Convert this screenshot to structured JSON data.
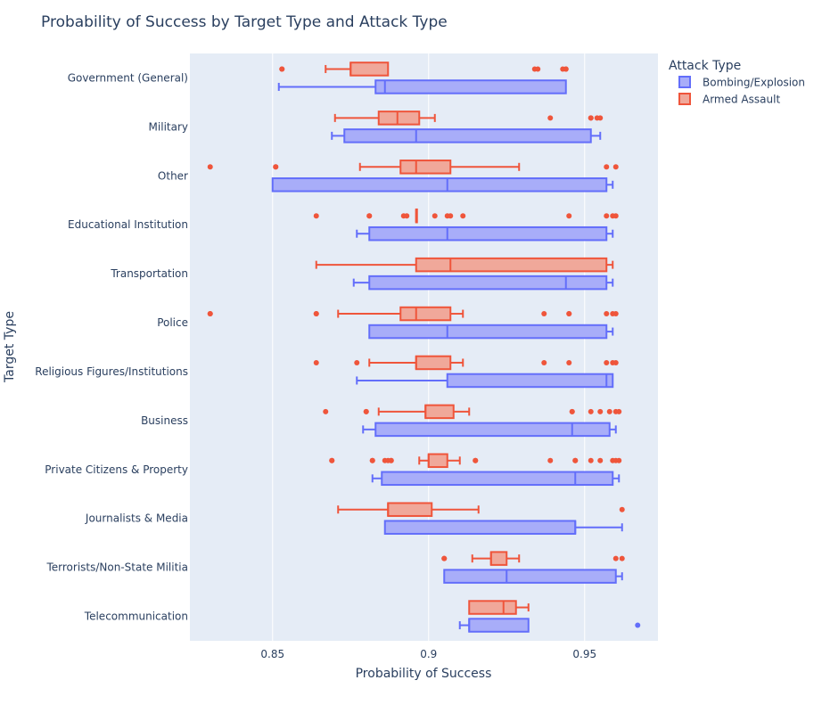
{
  "chart_data": {
    "type": "box",
    "orientation": "horizontal",
    "title": "Probability of Success by Target Type and Attack Type",
    "xlabel": "Probability of Success",
    "ylabel": "Target Type",
    "xlim": [
      0.8235,
      0.9735
    ],
    "xticks": [
      0.85,
      0.9,
      0.95
    ],
    "xtick_labels": [
      "0.85",
      "0.9",
      "0.95"
    ],
    "grid": true,
    "legend_title": "Attack Type",
    "legend_position": "top-right",
    "categories": [
      "Government (General)",
      "Military",
      "Other",
      "Educational Institution",
      "Transportation",
      "Police",
      "Religious Figures/Institutions",
      "Business",
      "Private Citizens & Property",
      "Journalists & Media",
      "Terrorists/Non-State Militia",
      "Telecommunication"
    ],
    "series": [
      {
        "name": "Bombing/Explosion",
        "color": "#636efa",
        "fill": "#a8adf9",
        "boxes": [
          {
            "min": 0.852,
            "q1": 0.883,
            "median": 0.886,
            "q3": 0.944,
            "max": 0.944,
            "outliers": []
          },
          {
            "min": 0.869,
            "q1": 0.873,
            "median": 0.896,
            "q3": 0.952,
            "max": 0.955,
            "outliers": []
          },
          {
            "min": 0.85,
            "q1": 0.85,
            "median": 0.906,
            "q3": 0.957,
            "max": 0.959,
            "outliers": []
          },
          {
            "min": 0.877,
            "q1": 0.881,
            "median": 0.906,
            "q3": 0.957,
            "max": 0.959,
            "outliers": []
          },
          {
            "min": 0.876,
            "q1": 0.881,
            "median": 0.944,
            "q3": 0.957,
            "max": 0.959,
            "outliers": []
          },
          {
            "min": 0.881,
            "q1": 0.881,
            "median": 0.906,
            "q3": 0.957,
            "max": 0.959,
            "outliers": []
          },
          {
            "min": 0.877,
            "q1": 0.906,
            "median": 0.957,
            "q3": 0.959,
            "max": 0.959,
            "outliers": []
          },
          {
            "min": 0.879,
            "q1": 0.883,
            "median": 0.946,
            "q3": 0.958,
            "max": 0.96,
            "outliers": []
          },
          {
            "min": 0.882,
            "q1": 0.885,
            "median": 0.947,
            "q3": 0.959,
            "max": 0.961,
            "outliers": []
          },
          {
            "min": 0.886,
            "q1": 0.886,
            "median": 0.947,
            "q3": 0.947,
            "max": 0.962,
            "outliers": []
          },
          {
            "min": 0.905,
            "q1": 0.905,
            "median": 0.925,
            "q3": 0.96,
            "max": 0.962,
            "outliers": []
          },
          {
            "min": 0.91,
            "q1": 0.913,
            "median": 0.913,
            "q3": 0.932,
            "max": 0.932,
            "outliers": [
              0.967
            ]
          }
        ]
      },
      {
        "name": "Armed Assault",
        "color": "#ef553b",
        "fill": "#f0a89a",
        "boxes": [
          {
            "min": 0.867,
            "q1": 0.875,
            "median": 0.875,
            "q3": 0.887,
            "max": 0.887,
            "outliers": [
              0.853,
              0.853,
              0.934,
              0.935,
              0.943,
              0.944,
              0.944
            ]
          },
          {
            "min": 0.87,
            "q1": 0.884,
            "median": 0.89,
            "q3": 0.897,
            "max": 0.902,
            "outliers": [
              0.939,
              0.952,
              0.952,
              0.954,
              0.955
            ]
          },
          {
            "min": 0.878,
            "q1": 0.891,
            "median": 0.896,
            "q3": 0.907,
            "max": 0.929,
            "outliers": [
              0.83,
              0.851,
              0.851,
              0.957,
              0.96
            ]
          },
          {
            "min": 0.896,
            "q1": 0.896,
            "median": 0.896,
            "q3": 0.896,
            "max": 0.896,
            "outliers": [
              0.864,
              0.881,
              0.881,
              0.892,
              0.893,
              0.902,
              0.906,
              0.907,
              0.911,
              0.945,
              0.957,
              0.959,
              0.96
            ]
          },
          {
            "min": 0.864,
            "q1": 0.896,
            "median": 0.907,
            "q3": 0.957,
            "max": 0.959,
            "outliers": []
          },
          {
            "min": 0.871,
            "q1": 0.891,
            "median": 0.896,
            "q3": 0.907,
            "max": 0.911,
            "outliers": [
              0.83,
              0.83,
              0.864,
              0.864,
              0.937,
              0.945,
              0.945,
              0.957,
              0.959,
              0.96
            ]
          },
          {
            "min": 0.881,
            "q1": 0.896,
            "median": 0.896,
            "q3": 0.907,
            "max": 0.911,
            "outliers": [
              0.864,
              0.877,
              0.937,
              0.945,
              0.957,
              0.959,
              0.96
            ]
          },
          {
            "min": 0.884,
            "q1": 0.899,
            "median": 0.899,
            "q3": 0.908,
            "max": 0.913,
            "outliers": [
              0.867,
              0.88,
              0.88,
              0.946,
              0.946,
              0.952,
              0.955,
              0.958,
              0.96,
              0.961
            ]
          },
          {
            "min": 0.897,
            "q1": 0.9,
            "median": 0.9,
            "q3": 0.906,
            "max": 0.91,
            "outliers": [
              0.869,
              0.869,
              0.882,
              0.882,
              0.886,
              0.887,
              0.888,
              0.888,
              0.915,
              0.915,
              0.939,
              0.947,
              0.947,
              0.952,
              0.955,
              0.959,
              0.96,
              0.961
            ]
          },
          {
            "min": 0.871,
            "q1": 0.887,
            "median": 0.887,
            "q3": 0.901,
            "max": 0.916,
            "outliers": [
              0.962
            ]
          },
          {
            "min": 0.914,
            "q1": 0.92,
            "median": 0.92,
            "q3": 0.925,
            "max": 0.929,
            "outliers": [
              0.905,
              0.905,
              0.96,
              0.962
            ]
          },
          {
            "min": 0.913,
            "q1": 0.913,
            "median": 0.924,
            "q3": 0.928,
            "max": 0.932,
            "outliers": []
          }
        ]
      }
    ]
  }
}
